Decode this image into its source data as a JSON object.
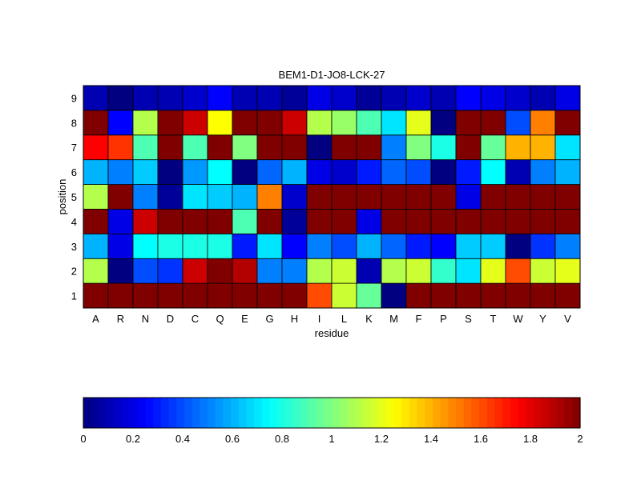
{
  "chart_data": {
    "type": "heatmap",
    "title": "BEM1-D1-JO8-LCK-27",
    "xlabel": "residue",
    "ylabel": "position",
    "x_categories": [
      "A",
      "R",
      "N",
      "D",
      "C",
      "Q",
      "E",
      "G",
      "H",
      "I",
      "L",
      "K",
      "M",
      "F",
      "P",
      "S",
      "T",
      "W",
      "Y",
      "V"
    ],
    "y_categories": [
      "1",
      "2",
      "3",
      "4",
      "5",
      "6",
      "7",
      "8",
      "9"
    ],
    "values": [
      [
        2,
        2,
        2,
        2,
        2,
        2,
        2,
        2,
        2,
        1.6,
        1.15,
        0.95,
        0,
        2,
        2,
        2,
        2,
        2,
        2,
        2
      ],
      [
        1.1,
        0,
        0.4,
        0.35,
        1.85,
        2,
        1.9,
        0.5,
        0.5,
        1.1,
        1.15,
        0.1,
        1.1,
        1.15,
        0.85,
        0.7,
        1.2,
        1.6,
        1.15,
        1.2
      ],
      [
        0.6,
        0.2,
        0.75,
        0.8,
        0.8,
        0.8,
        0.3,
        0.7,
        0.25,
        0.5,
        0.4,
        0.6,
        0.45,
        0.3,
        0.25,
        0.65,
        0.65,
        0,
        0.35,
        0.5
      ],
      [
        2,
        0.2,
        1.85,
        2,
        2,
        2,
        0.9,
        2,
        0.05,
        2,
        2,
        0.2,
        2,
        2,
        2,
        2,
        2,
        2,
        2,
        2
      ],
      [
        1.1,
        2,
        0.5,
        0.05,
        0.7,
        0.65,
        0.6,
        1.5,
        0.15,
        2,
        2,
        2,
        2,
        2,
        2,
        0.2,
        2,
        2,
        2,
        2
      ],
      [
        0.6,
        0.5,
        0.65,
        0,
        0.55,
        0.75,
        0,
        0.45,
        0.6,
        0.2,
        0.15,
        0.3,
        0.45,
        0.4,
        0,
        0.3,
        0.75,
        0.1,
        0.5,
        0.6
      ],
      [
        1.75,
        1.65,
        0.9,
        2,
        0.9,
        2,
        1,
        2,
        2,
        0,
        2,
        2,
        0.5,
        1,
        0.8,
        2,
        0.95,
        1.4,
        1.4,
        0.7
      ],
      [
        2,
        0.25,
        1.1,
        2,
        1.85,
        1.25,
        2,
        2,
        1.85,
        1.1,
        1.05,
        0.9,
        0.7,
        1.2,
        0,
        2,
        2,
        0.4,
        1.5,
        2
      ],
      [
        0.1,
        0,
        0.1,
        0.1,
        0.15,
        0.25,
        0.1,
        0.1,
        0.05,
        0.2,
        0.15,
        0.05,
        0.1,
        0.15,
        0.1,
        0.25,
        0.2,
        0.15,
        0.1,
        0.2
      ]
    ],
    "colormap": "jet",
    "clim": [
      0,
      2
    ],
    "colorbar_ticks": [
      "0",
      "0.2",
      "0.4",
      "0.6",
      "0.8",
      "1",
      "1.2",
      "1.4",
      "1.6",
      "1.8",
      "2"
    ],
    "colorbar_location": "bottom",
    "grid": true
  }
}
